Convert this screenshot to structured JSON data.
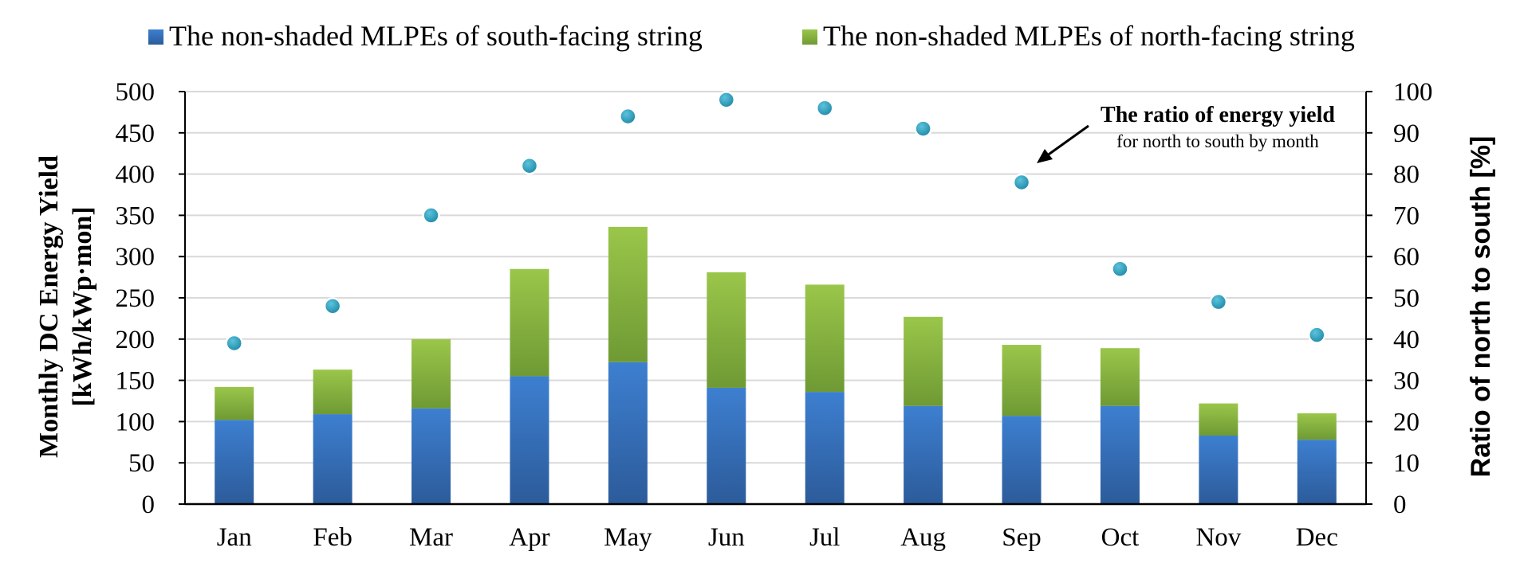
{
  "chart_data": {
    "type": "bar",
    "stacked": true,
    "categories": [
      "Jan",
      "Feb",
      "Mar",
      "Apr",
      "May",
      "Jun",
      "Jul",
      "Aug",
      "Sep",
      "Oct",
      "Nov",
      "Dec"
    ],
    "series": [
      {
        "name": "The non-shaded MLPEs of south-facing string",
        "axis": "left",
        "color_top": "#3d7fd0",
        "color_bottom": "#2c5b9a",
        "values": [
          102,
          109,
          116,
          155,
          172,
          141,
          136,
          119,
          107,
          119,
          83,
          78
        ]
      },
      {
        "name": "The non-shaded MLPEs of north-facing string",
        "axis": "left",
        "color_top": "#9ac64a",
        "color_bottom": "#6f9a34",
        "values": [
          40,
          54,
          84,
          130,
          164,
          140,
          130,
          108,
          86,
          70,
          39,
          32
        ]
      },
      {
        "name": "ratio",
        "type": "scatter",
        "axis": "right",
        "color": "#2aa0be",
        "values": [
          39,
          48,
          70,
          82,
          94,
          98,
          96,
          91,
          78,
          57,
          49,
          41
        ]
      }
    ],
    "ylabel": "Monthly DC Energy Yield",
    "ylabel_line2": "[kWh/kWp·mon]",
    "y2label": "Ratio of north to south [%]",
    "ylim": [
      0,
      500
    ],
    "yticks": [
      "0",
      "50",
      "100",
      "150",
      "200",
      "250",
      "300",
      "350",
      "400",
      "450",
      "500"
    ],
    "y2lim": [
      0,
      100
    ],
    "y2ticks": [
      "0",
      "10",
      "20",
      "30",
      "40",
      "50",
      "60",
      "70",
      "80",
      "90",
      "100"
    ],
    "grid": true,
    "legend_position": "top",
    "annotation": {
      "title": "The ratio of energy yield",
      "subtitle": "for north to south by month",
      "points_to": "Sep"
    }
  }
}
